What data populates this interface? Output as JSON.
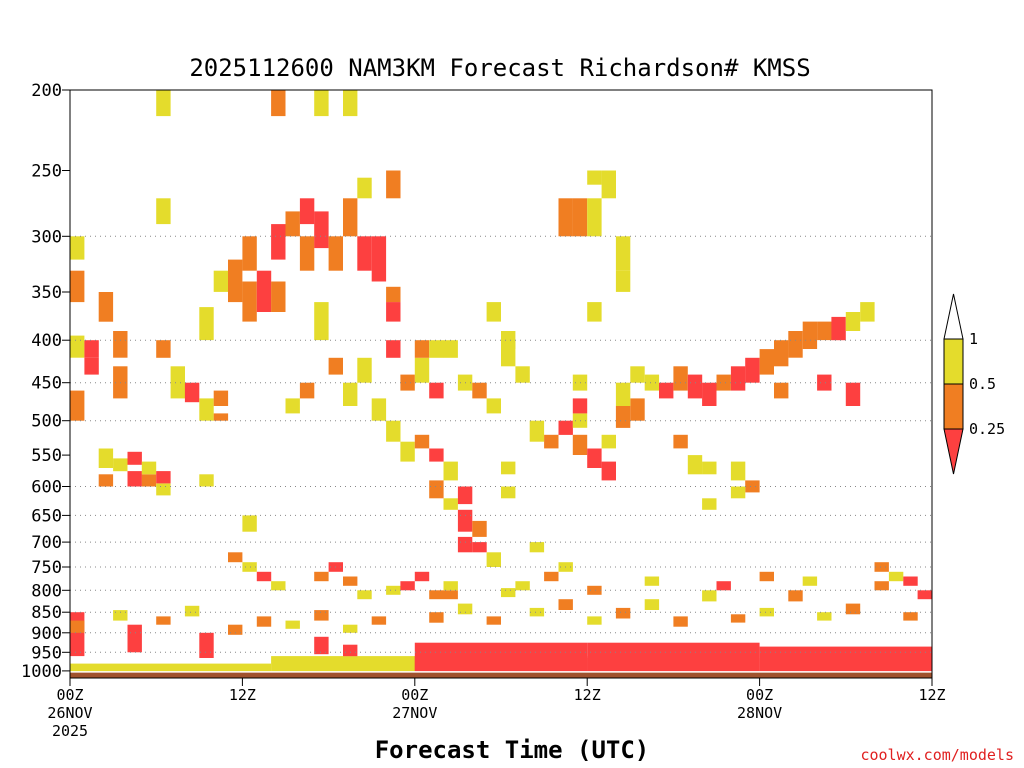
{
  "chart_data": {
    "type": "heatmap",
    "title": "2025112600 NAM3KM Forecast Richardson# KMSS",
    "xlabel": "Forecast Time (UTC)",
    "ylabel": "",
    "credit": "coolwx.com/models",
    "x_ticks": [
      {
        "hour": 0,
        "lines": [
          "00Z",
          "26NOV",
          "2025"
        ]
      },
      {
        "hour": 12,
        "lines": [
          "12Z"
        ]
      },
      {
        "hour": 24,
        "lines": [
          "00Z",
          "27NOV"
        ]
      },
      {
        "hour": 36,
        "lines": [
          "12Z"
        ]
      },
      {
        "hour": 48,
        "lines": [
          "00Z",
          "28NOV"
        ]
      },
      {
        "hour": 60,
        "lines": [
          "12Z"
        ]
      }
    ],
    "xlim": [
      0,
      60
    ],
    "y_ticks": [
      200,
      250,
      300,
      350,
      400,
      450,
      500,
      550,
      600,
      650,
      700,
      750,
      800,
      850,
      900,
      950,
      1000
    ],
    "ylim": [
      200,
      1020
    ],
    "y_scale": "log",
    "gridlines": [
      300,
      400,
      450,
      500,
      600,
      650,
      700,
      750,
      800,
      850,
      900,
      950
    ],
    "legend": {
      "placement": "right",
      "labels": [
        "1",
        "0.5",
        "0.25"
      ]
    },
    "colors": {
      "lt_0_25": "#fd4040",
      "0_25_to_0_5": "#f07e22",
      "0_5_to_1": "#e4dc2c",
      "ground": "#a0522d"
    },
    "bins": [
      "<0.25",
      "0.25-0.5",
      "0.5-1"
    ],
    "cells": [
      [
        0,
        1050,
        1000,
        3
      ],
      [
        0,
        980,
        1050,
        3
      ],
      [
        14,
        960,
        1050,
        3
      ],
      [
        24,
        925,
        1020,
        1
      ],
      [
        36,
        925,
        1020,
        1
      ],
      [
        48,
        935,
        1020,
        1
      ],
      [
        60,
        945,
        1010,
        1
      ],
      [
        24,
        960,
        1000,
        1
      ],
      [
        36,
        965,
        1000,
        1
      ],
      [
        0,
        850,
        960,
        1
      ],
      [
        4,
        880,
        950,
        1
      ],
      [
        9,
        900,
        965,
        1
      ],
      [
        17,
        910,
        955,
        1
      ],
      [
        19,
        930,
        960,
        1
      ],
      [
        0,
        870,
        900,
        2
      ],
      [
        3,
        845,
        870,
        3
      ],
      [
        6,
        860,
        880,
        2
      ],
      [
        8,
        835,
        860,
        3
      ],
      [
        11,
        880,
        905,
        2
      ],
      [
        13,
        860,
        885,
        2
      ],
      [
        15,
        870,
        890,
        3
      ],
      [
        17,
        845,
        870,
        2
      ],
      [
        19,
        880,
        900,
        3
      ],
      [
        21,
        860,
        880,
        2
      ],
      [
        25,
        850,
        875,
        2
      ],
      [
        27,
        830,
        855,
        3
      ],
      [
        29,
        860,
        880,
        2
      ],
      [
        32,
        840,
        860,
        3
      ],
      [
        34,
        820,
        845,
        2
      ],
      [
        36,
        860,
        880,
        3
      ],
      [
        38,
        840,
        865,
        2
      ],
      [
        40,
        820,
        845,
        3
      ],
      [
        42,
        860,
        885,
        2
      ],
      [
        44,
        800,
        825,
        3
      ],
      [
        46,
        855,
        875,
        2
      ],
      [
        48,
        840,
        860,
        3
      ],
      [
        50,
        800,
        825,
        2
      ],
      [
        52,
        850,
        870,
        3
      ],
      [
        54,
        830,
        855,
        2
      ],
      [
        56,
        780,
        800,
        2
      ],
      [
        57,
        760,
        780,
        3
      ],
      [
        58,
        850,
        870,
        2
      ],
      [
        59,
        800,
        820,
        1
      ],
      [
        26,
        800,
        820,
        2
      ],
      [
        30,
        795,
        815,
        3
      ],
      [
        36,
        790,
        810,
        2
      ],
      [
        40,
        770,
        790,
        3
      ],
      [
        45,
        780,
        800,
        1
      ],
      [
        48,
        760,
        780,
        2
      ],
      [
        51,
        770,
        790,
        3
      ],
      [
        56,
        740,
        760,
        2
      ],
      [
        58,
        770,
        790,
        1
      ],
      [
        0,
        395,
        420,
        3
      ],
      [
        0,
        330,
        360,
        2
      ],
      [
        0,
        300,
        320,
        3
      ],
      [
        0,
        460,
        500,
        2
      ],
      [
        1,
        420,
        440,
        1
      ],
      [
        1,
        400,
        420,
        1
      ],
      [
        2,
        350,
        380,
        2
      ],
      [
        3,
        430,
        470,
        2
      ],
      [
        3,
        390,
        420,
        2
      ],
      [
        2,
        540,
        570,
        3
      ],
      [
        2,
        580,
        600,
        2
      ],
      [
        3,
        555,
        575,
        3
      ],
      [
        4,
        545,
        565,
        1
      ],
      [
        4,
        575,
        600,
        1
      ],
      [
        5,
        580,
        600,
        2
      ],
      [
        5,
        560,
        580,
        3
      ],
      [
        6,
        575,
        595,
        1
      ],
      [
        6,
        595,
        615,
        3
      ],
      [
        6,
        200,
        215,
        3
      ],
      [
        6,
        270,
        290,
        3
      ],
      [
        6,
        400,
        420,
        2
      ],
      [
        7,
        430,
        470,
        3
      ],
      [
        8,
        450,
        475,
        1
      ],
      [
        9,
        365,
        400,
        3
      ],
      [
        9,
        470,
        500,
        3
      ],
      [
        10,
        460,
        480,
        2
      ],
      [
        10,
        490,
        500,
        2
      ],
      [
        9,
        580,
        600,
        3
      ],
      [
        10,
        330,
        350,
        3
      ],
      [
        11,
        320,
        360,
        2
      ],
      [
        12,
        300,
        330,
        2
      ],
      [
        12,
        340,
        380,
        2
      ],
      [
        13,
        330,
        370,
        1
      ],
      [
        14,
        290,
        320,
        1
      ],
      [
        14,
        340,
        370,
        2
      ],
      [
        15,
        280,
        300,
        2
      ],
      [
        16,
        270,
        290,
        1
      ],
      [
        16,
        300,
        330,
        2
      ],
      [
        17,
        280,
        310,
        1
      ],
      [
        18,
        300,
        330,
        2
      ],
      [
        19,
        270,
        300,
        2
      ],
      [
        20,
        300,
        330,
        1
      ],
      [
        21,
        300,
        340,
        1
      ],
      [
        14,
        200,
        215,
        2
      ],
      [
        17,
        200,
        215,
        3
      ],
      [
        19,
        200,
        215,
        3
      ],
      [
        20,
        255,
        270,
        3
      ],
      [
        22,
        250,
        270,
        2
      ],
      [
        22,
        345,
        360,
        2
      ],
      [
        22,
        360,
        380,
        1
      ],
      [
        24,
        420,
        450,
        3
      ],
      [
        23,
        440,
        460,
        2
      ],
      [
        25,
        450,
        470,
        1
      ],
      [
        17,
        360,
        400,
        3
      ],
      [
        18,
        420,
        440,
        2
      ],
      [
        16,
        450,
        470,
        2
      ],
      [
        15,
        470,
        490,
        3
      ],
      [
        19,
        450,
        480,
        3
      ],
      [
        20,
        420,
        450,
        3
      ],
      [
        21,
        470,
        500,
        3
      ],
      [
        22,
        500,
        530,
        3
      ],
      [
        23,
        530,
        560,
        3
      ],
      [
        24,
        520,
        540,
        2
      ],
      [
        25,
        540,
        560,
        1
      ],
      [
        25,
        590,
        620,
        2
      ],
      [
        26,
        560,
        590,
        3
      ],
      [
        26,
        620,
        640,
        3
      ],
      [
        27,
        600,
        630,
        1
      ],
      [
        27,
        640,
        680,
        1
      ],
      [
        27,
        690,
        720,
        1
      ],
      [
        28,
        660,
        690,
        2
      ],
      [
        28,
        700,
        720,
        1
      ],
      [
        29,
        720,
        750,
        3
      ],
      [
        31,
        780,
        800,
        3
      ],
      [
        33,
        760,
        780,
        2
      ],
      [
        34,
        740,
        760,
        3
      ],
      [
        32,
        700,
        720,
        3
      ],
      [
        30,
        560,
        580,
        3
      ],
      [
        30,
        600,
        620,
        3
      ],
      [
        32,
        500,
        530,
        3
      ],
      [
        33,
        520,
        540,
        2
      ],
      [
        34,
        500,
        520,
        1
      ],
      [
        35,
        490,
        510,
        3
      ],
      [
        35,
        520,
        550,
        2
      ],
      [
        36,
        540,
        570,
        1
      ],
      [
        37,
        520,
        540,
        3
      ],
      [
        37,
        560,
        590,
        1
      ],
      [
        38,
        480,
        510,
        2
      ],
      [
        39,
        470,
        500,
        2
      ],
      [
        40,
        440,
        460,
        3
      ],
      [
        41,
        450,
        470,
        1
      ],
      [
        42,
        430,
        460,
        2
      ],
      [
        43,
        440,
        470,
        1
      ],
      [
        44,
        450,
        480,
        1
      ],
      [
        45,
        440,
        460,
        2
      ],
      [
        46,
        430,
        460,
        1
      ],
      [
        47,
        420,
        450,
        1
      ],
      [
        48,
        410,
        440,
        2
      ],
      [
        49,
        400,
        430,
        2
      ],
      [
        50,
        390,
        420,
        2
      ],
      [
        51,
        380,
        410,
        2
      ],
      [
        52,
        380,
        400,
        2
      ],
      [
        53,
        375,
        400,
        1
      ],
      [
        54,
        370,
        390,
        3
      ],
      [
        55,
        360,
        380,
        3
      ],
      [
        49,
        450,
        470,
        2
      ],
      [
        52,
        440,
        460,
        1
      ],
      [
        54,
        450,
        480,
        1
      ],
      [
        38,
        450,
        480,
        3
      ],
      [
        39,
        430,
        450,
        3
      ],
      [
        42,
        520,
        540,
        2
      ],
      [
        43,
        550,
        580,
        3
      ],
      [
        44,
        560,
        580,
        3
      ],
      [
        46,
        560,
        590,
        3
      ],
      [
        47,
        590,
        610,
        2
      ],
      [
        44,
        620,
        640,
        3
      ],
      [
        46,
        600,
        620,
        3
      ],
      [
        34,
        270,
        300,
        2
      ],
      [
        35,
        270,
        300,
        2
      ],
      [
        36,
        270,
        300,
        3
      ],
      [
        37,
        250,
        270,
        3
      ],
      [
        38,
        300,
        330,
        3
      ],
      [
        36,
        250,
        260,
        3
      ],
      [
        38,
        330,
        350,
        3
      ],
      [
        36,
        360,
        380,
        3
      ],
      [
        35,
        440,
        460,
        3
      ],
      [
        35,
        470,
        490,
        1
      ],
      [
        29,
        360,
        380,
        3
      ],
      [
        30,
        390,
        410,
        3
      ],
      [
        30,
        400,
        430,
        3
      ],
      [
        31,
        430,
        450,
        3
      ],
      [
        22,
        400,
        420,
        1
      ],
      [
        24,
        400,
        420,
        2
      ],
      [
        25,
        400,
        420,
        3
      ],
      [
        26,
        400,
        420,
        3
      ],
      [
        27,
        440,
        460,
        3
      ],
      [
        28,
        450,
        470,
        2
      ],
      [
        29,
        470,
        490,
        3
      ],
      [
        12,
        650,
        680,
        3
      ],
      [
        11,
        720,
        740,
        2
      ],
      [
        12,
        740,
        760,
        3
      ],
      [
        13,
        760,
        780,
        1
      ],
      [
        14,
        780,
        800,
        3
      ],
      [
        17,
        760,
        780,
        2
      ],
      [
        18,
        740,
        760,
        1
      ],
      [
        19,
        770,
        790,
        2
      ],
      [
        20,
        800,
        820,
        3
      ],
      [
        22,
        790,
        810,
        3
      ],
      [
        23,
        780,
        800,
        1
      ],
      [
        24,
        760,
        780,
        1
      ],
      [
        25,
        800,
        820,
        2
      ],
      [
        26,
        780,
        800,
        3
      ]
    ]
  }
}
